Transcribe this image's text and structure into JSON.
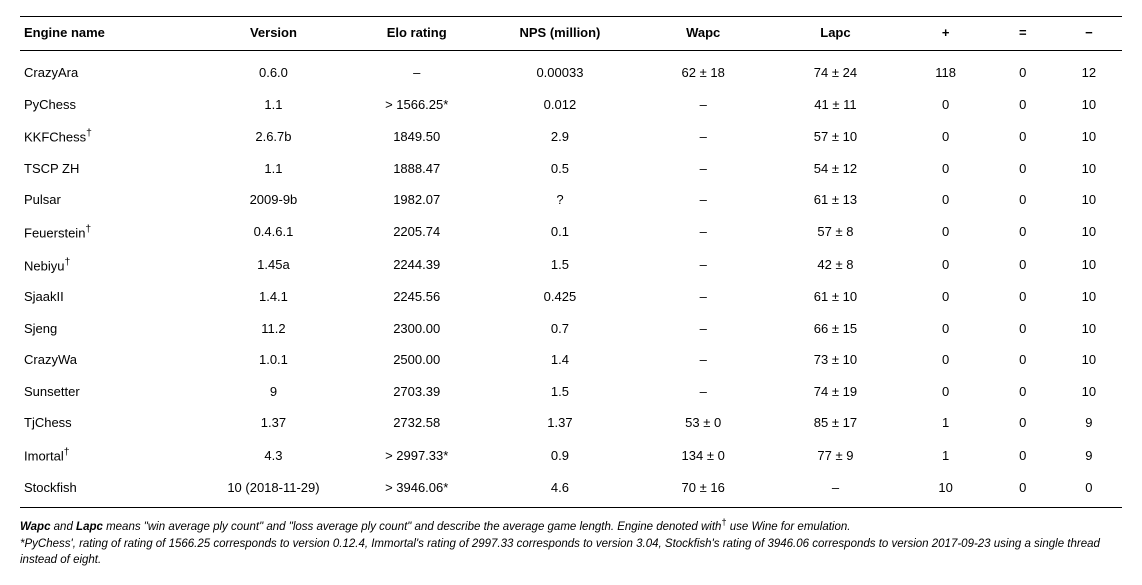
{
  "table": {
    "columns": [
      {
        "key": "engine",
        "label": "Engine name",
        "class": "col-engine"
      },
      {
        "key": "version",
        "label": "Version",
        "class": "col-version"
      },
      {
        "key": "elo",
        "label": "Elo rating",
        "class": "col-elo"
      },
      {
        "key": "nps",
        "label": "NPS (million)",
        "class": "col-nps"
      },
      {
        "key": "wapc",
        "label": "Wapc",
        "class": "col-wapc"
      },
      {
        "key": "lapc",
        "label": "Lapc",
        "class": "col-lapc"
      },
      {
        "key": "plus",
        "label": "+",
        "class": "col-plus"
      },
      {
        "key": "eq",
        "label": "=",
        "class": "col-eq"
      },
      {
        "key": "minus",
        "label": "−",
        "class": "col-minus"
      }
    ],
    "rows": [
      {
        "engine": "CrazyAra",
        "version": "0.6.0",
        "elo": "–",
        "nps": "0.00033",
        "wapc": "62 ± 18",
        "lapc": "74 ± 24",
        "plus": "118",
        "eq": "0",
        "minus": "12"
      },
      {
        "engine": "PyChess",
        "version": "1.1",
        "elo": "> 1566.25*",
        "nps": "0.012",
        "wapc": "–",
        "lapc": "41 ± 11",
        "plus": "0",
        "eq": "0",
        "minus": "10"
      },
      {
        "engine": "KKFChess",
        "dagger": true,
        "version": "2.6.7b",
        "elo": "1849.50",
        "nps": "2.9",
        "wapc": "–",
        "lapc": "57 ± 10",
        "plus": "0",
        "eq": "0",
        "minus": "10"
      },
      {
        "engine": "TSCP ZH",
        "version": "1.1",
        "elo": "1888.47",
        "nps": "0.5",
        "wapc": "–",
        "lapc": "54 ± 12",
        "plus": "0",
        "eq": "0",
        "minus": "10"
      },
      {
        "engine": "Pulsar",
        "version": "2009-9b",
        "elo": "1982.07",
        "nps": "?",
        "wapc": "–",
        "lapc": "61 ± 13",
        "plus": "0",
        "eq": "0",
        "minus": "10"
      },
      {
        "engine": "Feuerstein",
        "dagger": true,
        "version": "0.4.6.1",
        "elo": "2205.74",
        "nps": "0.1",
        "wapc": "–",
        "lapc": "57 ± 8",
        "plus": "0",
        "eq": "0",
        "minus": "10"
      },
      {
        "engine": "Nebiyu",
        "dagger": true,
        "version": "1.45a",
        "elo": "2244.39",
        "nps": "1.5",
        "wapc": "–",
        "lapc": "42 ± 8",
        "plus": "0",
        "eq": "0",
        "minus": "10"
      },
      {
        "engine": "SjaakII",
        "version": "1.4.1",
        "elo": "2245.56",
        "nps": "0.425",
        "wapc": "–",
        "lapc": "61 ± 10",
        "plus": "0",
        "eq": "0",
        "minus": "10"
      },
      {
        "engine": "Sjeng",
        "version": "11.2",
        "elo": "2300.00",
        "nps": "0.7",
        "wapc": "–",
        "lapc": "66 ± 15",
        "plus": "0",
        "eq": "0",
        "minus": "10"
      },
      {
        "engine": "CrazyWa",
        "version": "1.0.1",
        "elo": "2500.00",
        "nps": "1.4",
        "wapc": "–",
        "lapc": "73 ± 10",
        "plus": "0",
        "eq": "0",
        "minus": "10"
      },
      {
        "engine": "Sunsetter",
        "version": "9",
        "elo": "2703.39",
        "nps": "1.5",
        "wapc": "–",
        "lapc": "74 ± 19",
        "plus": "0",
        "eq": "0",
        "minus": "10"
      },
      {
        "engine": "TjChess",
        "version": "1.37",
        "elo": "2732.58",
        "nps": "1.37",
        "wapc": "53 ± 0",
        "lapc": "85 ± 17",
        "plus": "1",
        "eq": "0",
        "minus": "9"
      },
      {
        "engine": "Imortal",
        "dagger": true,
        "version": "4.3",
        "elo": "> 2997.33*",
        "nps": "0.9",
        "wapc": "134 ± 0",
        "lapc": "77 ± 9",
        "plus": "1",
        "eq": "0",
        "minus": "9"
      },
      {
        "engine": "Stockfish",
        "version": "10 (2018-11-29)",
        "elo": "> 3946.06*",
        "nps": "4.6",
        "wapc": "70 ± 16",
        "lapc": "–",
        "plus": "10",
        "eq": "0",
        "minus": "0"
      }
    ]
  },
  "footnotes": {
    "line1_pre": "",
    "line1_wapc": "Wapc",
    "line1_mid1": " and ",
    "line1_lapc": "Lapc",
    "line1_post": " means \"win average ply count\" and \"loss average ply count\" and describe the average game length. Engine denoted with",
    "line1_dagger": "†",
    "line1_end": "  use Wine for emulation.",
    "line2": "*PyChess', rating of rating of 1566.25 corresponds to version 0.12.4, Immortal's rating of 2997.33 corresponds to version 3.04, Stockfish's rating of 3946.06 corresponds to version 2017-09-23 using a single thread instead of eight."
  }
}
